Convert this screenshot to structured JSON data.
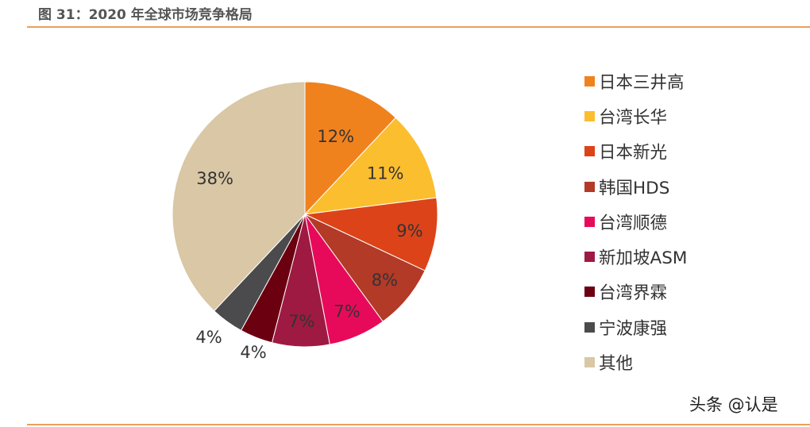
{
  "figure": {
    "title": "图 31：2020 年全球市场竞争格局"
  },
  "chart_data": {
    "type": "pie",
    "title": "",
    "slices": [
      {
        "name": "日本三井高",
        "value": 12,
        "label": "12%",
        "color": "#F0821E"
      },
      {
        "name": "台湾长华",
        "value": 11,
        "label": "11%",
        "color": "#FBBE2E"
      },
      {
        "name": "日本新光",
        "value": 9,
        "label": "9%",
        "color": "#DD4319"
      },
      {
        "name": "韩国HDS",
        "value": 8,
        "label": "8%",
        "color": "#B23A27"
      },
      {
        "name": "台湾顺德",
        "value": 7,
        "label": "7%",
        "color": "#E80A5A"
      },
      {
        "name": "新加坡ASM",
        "value": 7,
        "label": "7%",
        "color": "#9E1A42"
      },
      {
        "name": "台湾界霖",
        "value": 4,
        "label": "4%",
        "color": "#6B0010"
      },
      {
        "name": "宁波康强",
        "value": 4,
        "label": "4%",
        "color": "#4B4B4D"
      },
      {
        "name": "其他",
        "value": 38,
        "label": "38%",
        "color": "#D9C7A5"
      }
    ],
    "legend_position": "right"
  },
  "watermark": {
    "text": "头条 @认是"
  }
}
